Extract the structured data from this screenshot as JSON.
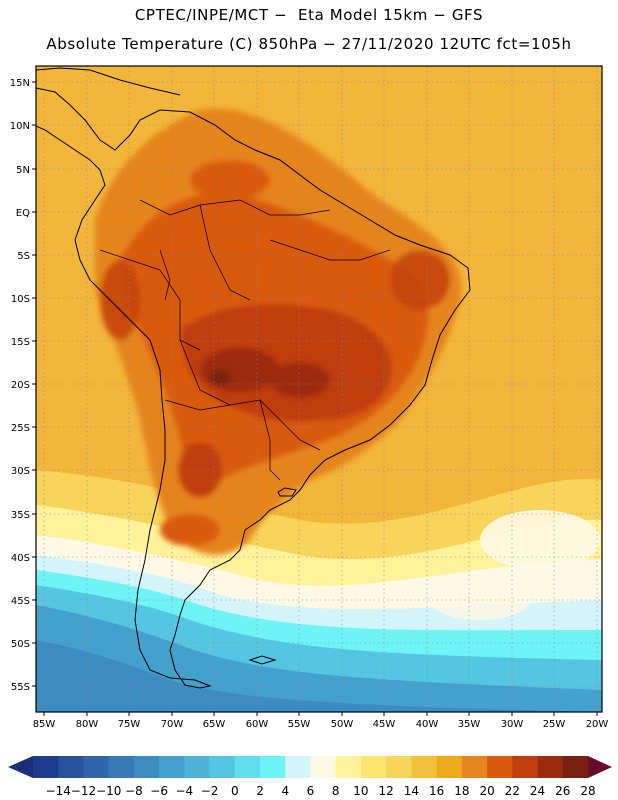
{
  "header": {
    "title_line1": "CPTEC/INPE/MCT −  Eta Model 15km − GFS",
    "title_line2": "Absolute Temperature (C) 850hPa − 27/11/2020 12UTC fct=105h"
  },
  "map": {
    "latitude_labels": [
      "15N",
      "10N",
      "5N",
      "EQ",
      "5S",
      "10S",
      "15S",
      "20S",
      "25S",
      "30S",
      "35S",
      "40S",
      "45S",
      "50S",
      "55S"
    ],
    "longitude_labels": [
      "85W",
      "80W",
      "75W",
      "70W",
      "65W",
      "60W",
      "55W",
      "50W",
      "45W",
      "40W",
      "35W",
      "30W",
      "25W",
      "20W"
    ]
  },
  "legend": {
    "labels": [
      "-14",
      "-12",
      "-10",
      "-8",
      "-6",
      "-4",
      "-2",
      "0",
      "2",
      "4",
      "6",
      "8",
      "10",
      "12",
      "14",
      "16",
      "18",
      "20",
      "22",
      "24",
      "26",
      "28"
    ],
    "colors": [
      "#1e3c8e",
      "#27529e",
      "#2f66aa",
      "#3779b6",
      "#3c8cc2",
      "#44a0cc",
      "#4cb4d8",
      "#55c6e2",
      "#60dcec",
      "#6ef4f6",
      "#d2f4fa",
      "#fff8e4",
      "#fff29a",
      "#fbe470",
      "#f8d45a",
      "#f2c03c",
      "#eeaa1a",
      "#e6841e",
      "#da5a0e",
      "#c03e0e",
      "#9c2a0e",
      "#78200e"
    ],
    "left_arrow_color": "#1a2e7a",
    "right_arrow_color": "#6a0a2a"
  }
}
